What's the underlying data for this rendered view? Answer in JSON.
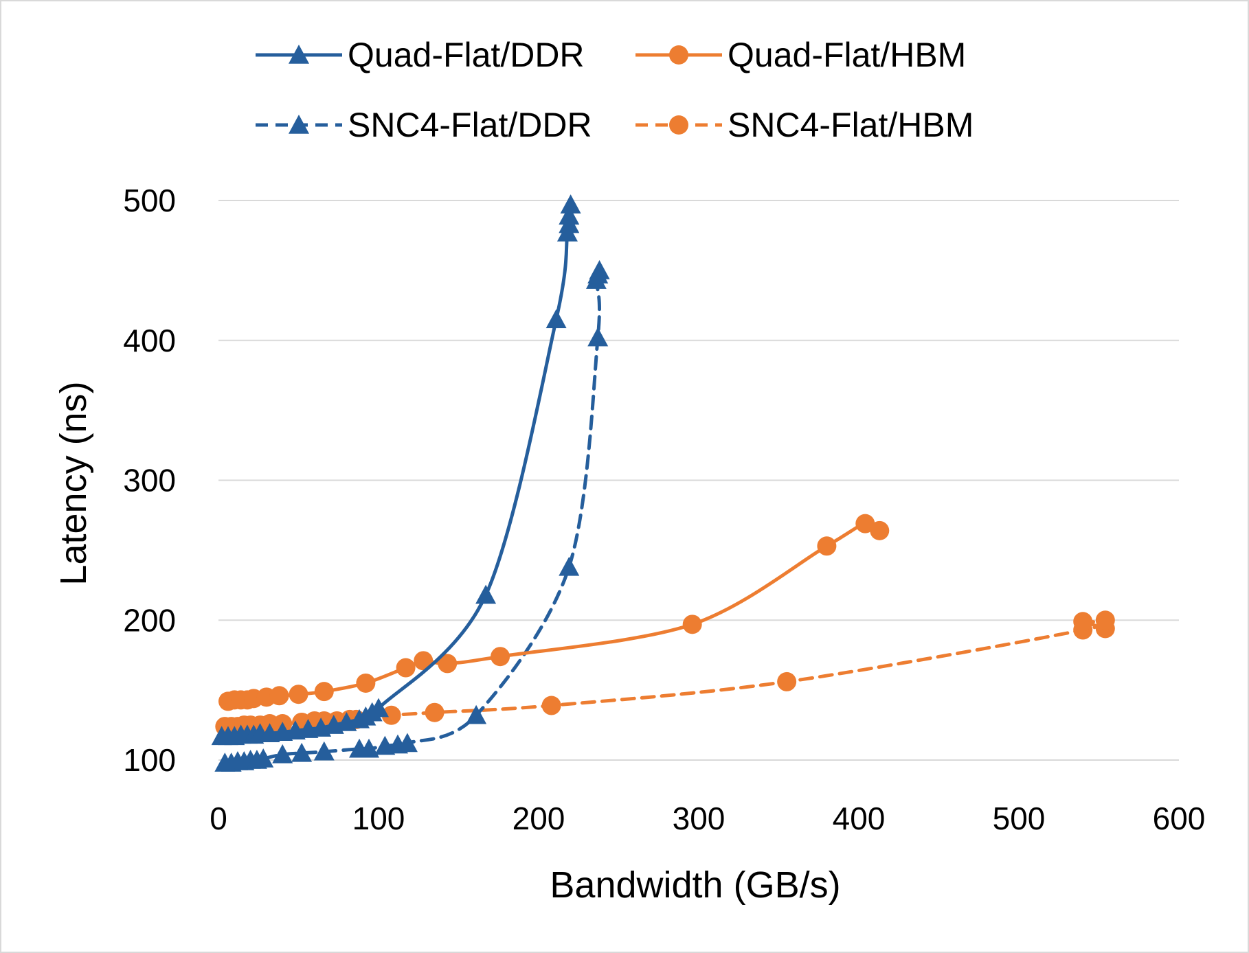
{
  "chart_data": {
    "type": "line",
    "title": "",
    "xlabel": "Bandwidth (GB/s)",
    "ylabel": "Latency (ns)",
    "xlim": [
      0,
      600
    ],
    "ylim": [
      100,
      500
    ],
    "xticks": [
      0,
      100,
      200,
      300,
      400,
      500,
      600
    ],
    "yticks": [
      100,
      200,
      300,
      400,
      500
    ],
    "grid": true,
    "legend_position": "top",
    "series": [
      {
        "name": "Quad-Flat/DDR",
        "color": "#255e9c",
        "line_style": "solid",
        "marker": "triangle",
        "points": [
          [
            2,
            117
          ],
          [
            6,
            117
          ],
          [
            10,
            117
          ],
          [
            14,
            118
          ],
          [
            18,
            118
          ],
          [
            22,
            118
          ],
          [
            26,
            119
          ],
          [
            32,
            119
          ],
          [
            40,
            120
          ],
          [
            48,
            121
          ],
          [
            56,
            122
          ],
          [
            64,
            123
          ],
          [
            72,
            125
          ],
          [
            80,
            127
          ],
          [
            88,
            129
          ],
          [
            92,
            131
          ],
          [
            96,
            134
          ],
          [
            100,
            137
          ],
          [
            167,
            218
          ],
          [
            211,
            415
          ],
          [
            218,
            477
          ],
          [
            219,
            483
          ],
          [
            219,
            489
          ],
          [
            220,
            497
          ]
        ]
      },
      {
        "name": "Quad-Flat/HBM",
        "color": "#ed7d31",
        "line_style": "solid",
        "marker": "circle",
        "points": [
          [
            6,
            142
          ],
          [
            10,
            143
          ],
          [
            14,
            143
          ],
          [
            18,
            143
          ],
          [
            22,
            144
          ],
          [
            30,
            145
          ],
          [
            38,
            146
          ],
          [
            50,
            147
          ],
          [
            66,
            149
          ],
          [
            92,
            155
          ],
          [
            117,
            166
          ],
          [
            128,
            171
          ],
          [
            143,
            169
          ],
          [
            176,
            174
          ],
          [
            296,
            197
          ],
          [
            380,
            253
          ],
          [
            404,
            269
          ],
          [
            413,
            264
          ]
        ]
      },
      {
        "name": "SNC4-Flat/DDR",
        "color": "#255e9c",
        "line_style": "dashed",
        "marker": "triangle",
        "points": [
          [
            4,
            98
          ],
          [
            8,
            98
          ],
          [
            12,
            99
          ],
          [
            16,
            99
          ],
          [
            20,
            100
          ],
          [
            24,
            100
          ],
          [
            28,
            101
          ],
          [
            40,
            104
          ],
          [
            52,
            105
          ],
          [
            66,
            106
          ],
          [
            88,
            108
          ],
          [
            94,
            108
          ],
          [
            104,
            110
          ],
          [
            112,
            111
          ],
          [
            118,
            112
          ],
          [
            161,
            132
          ],
          [
            219,
            238
          ],
          [
            237,
            402
          ],
          [
            236,
            443
          ],
          [
            237,
            447
          ],
          [
            238,
            450
          ]
        ]
      },
      {
        "name": "SNC4-Flat/HBM",
        "color": "#ed7d31",
        "line_style": "dashed",
        "marker": "circle",
        "points": [
          [
            4,
            124
          ],
          [
            8,
            124
          ],
          [
            12,
            124
          ],
          [
            16,
            125
          ],
          [
            20,
            125
          ],
          [
            26,
            125
          ],
          [
            32,
            126
          ],
          [
            40,
            126
          ],
          [
            52,
            127
          ],
          [
            60,
            128
          ],
          [
            66,
            128
          ],
          [
            74,
            128
          ],
          [
            82,
            129
          ],
          [
            86,
            129
          ],
          [
            108,
            132
          ],
          [
            135,
            134
          ],
          [
            208,
            139
          ],
          [
            355,
            156
          ],
          [
            540,
            193
          ],
          [
            540,
            199
          ],
          [
            554,
            194
          ],
          [
            554,
            200
          ]
        ]
      }
    ]
  }
}
